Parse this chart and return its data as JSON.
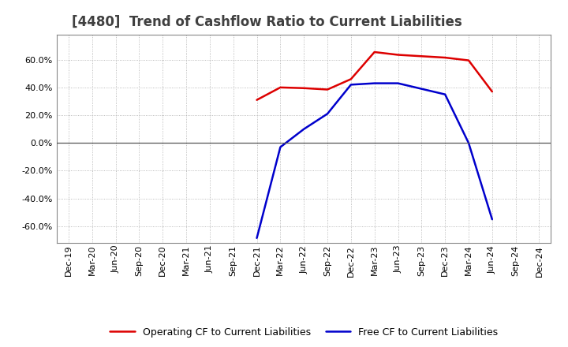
{
  "title": "[4480]  Trend of Cashflow Ratio to Current Liabilities",
  "x_labels": [
    "Dec-19",
    "Mar-20",
    "Jun-20",
    "Sep-20",
    "Dec-20",
    "Mar-21",
    "Jun-21",
    "Sep-21",
    "Dec-21",
    "Mar-22",
    "Jun-22",
    "Sep-22",
    "Dec-22",
    "Mar-23",
    "Jun-23",
    "Sep-23",
    "Dec-23",
    "Mar-24",
    "Jun-24",
    "Sep-24",
    "Dec-24"
  ],
  "operating_cf": [
    null,
    null,
    null,
    null,
    null,
    null,
    null,
    null,
    0.31,
    0.4,
    0.395,
    0.385,
    0.46,
    0.655,
    0.635,
    0.625,
    0.615,
    0.595,
    0.37,
    null,
    null
  ],
  "free_cf": [
    null,
    null,
    null,
    null,
    null,
    null,
    null,
    null,
    -0.685,
    -0.03,
    0.1,
    0.21,
    0.42,
    0.43,
    0.43,
    0.39,
    0.35,
    0.0,
    -0.55,
    null,
    null
  ],
  "ylim": [
    -0.72,
    0.78
  ],
  "yticks": [
    -0.6,
    -0.4,
    -0.2,
    0.0,
    0.2,
    0.4,
    0.6
  ],
  "operating_color": "#dd0000",
  "free_color": "#0000cc",
  "grid_color": "#aaaaaa",
  "bg_color": "#ffffff",
  "plot_bg_color": "#ffffff",
  "title_color": "#404040",
  "legend_op": "Operating CF to Current Liabilities",
  "legend_free": "Free CF to Current Liabilities",
  "title_fontsize": 12,
  "axis_fontsize": 8,
  "legend_fontsize": 9
}
